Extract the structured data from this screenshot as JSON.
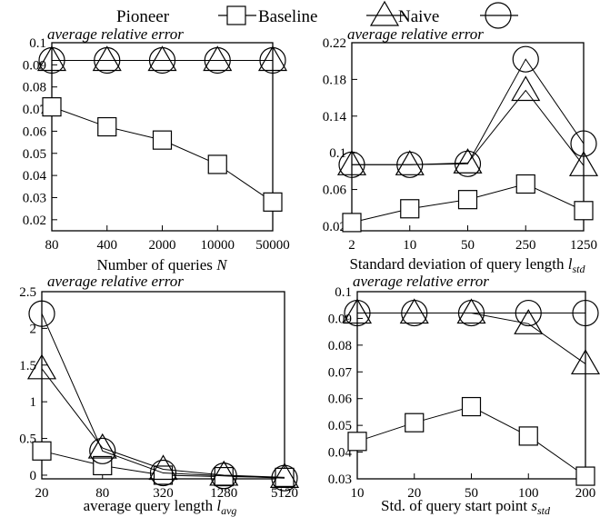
{
  "legend": [
    {
      "label": "Pioneer",
      "marker": "square"
    },
    {
      "label": "Baseline",
      "marker": "triangle"
    },
    {
      "label": "Naive",
      "marker": "circle"
    }
  ],
  "chart_data": [
    {
      "type": "line",
      "ylabel": "average relative error",
      "xlabel": "Number of queries N",
      "xlabel_parts": [
        "Number of queries ",
        "N",
        ""
      ],
      "categories": [
        "80",
        "400",
        "2000",
        "10000",
        "50000"
      ],
      "yticks": [
        "0.02",
        "0.03",
        "0.04",
        "0.05",
        "0.06",
        "0.07",
        "0.08",
        "0.09",
        "0.1"
      ],
      "ylim": [
        0.015,
        0.1
      ],
      "series": [
        {
          "name": "Pioneer",
          "values": [
            0.071,
            0.062,
            0.056,
            0.045,
            0.028
          ]
        },
        {
          "name": "Baseline",
          "values": [
            0.092,
            0.092,
            0.092,
            0.092,
            0.092
          ]
        },
        {
          "name": "Naive",
          "values": [
            0.092,
            0.092,
            0.092,
            0.092,
            0.092
          ]
        }
      ]
    },
    {
      "type": "line",
      "ylabel": "average relative error",
      "xlabel": "Standard deviation of query length l_std",
      "xlabel_parts": [
        "Standard deviation of query length ",
        "l",
        "std"
      ],
      "categories": [
        "2",
        "10",
        "50",
        "250",
        "1250"
      ],
      "yticks": [
        "0.02",
        "0.06",
        "0.1",
        "0.14",
        "0.18",
        "0.22"
      ],
      "ylim": [
        0.015,
        0.22
      ],
      "series": [
        {
          "name": "Pioneer",
          "values": [
            0.024,
            0.039,
            0.049,
            0.066,
            0.037
          ]
        },
        {
          "name": "Baseline",
          "values": [
            0.087,
            0.087,
            0.089,
            0.168,
            0.086
          ]
        },
        {
          "name": "Naive",
          "values": [
            0.087,
            0.087,
            0.088,
            0.202,
            0.11
          ]
        }
      ]
    },
    {
      "type": "line",
      "ylabel": "average relative error",
      "xlabel": "average query length l_avg",
      "xlabel_parts": [
        "average query length ",
        "l",
        "avg"
      ],
      "categories": [
        "20",
        "80",
        "320",
        "1280",
        "5120"
      ],
      "yticks": [
        "0",
        "0.5",
        "1",
        "1.5",
        "2",
        "2.5"
      ],
      "ylim": [
        -0.05,
        2.5
      ],
      "series": [
        {
          "name": "Pioneer",
          "values": [
            0.33,
            0.13,
            0.0,
            -0.02,
            -0.03
          ]
        },
        {
          "name": "Baseline",
          "values": [
            1.45,
            0.37,
            0.08,
            0.0,
            -0.03
          ]
        },
        {
          "name": "Naive",
          "values": [
            2.2,
            0.33,
            0.03,
            -0.01,
            -0.04
          ]
        }
      ]
    },
    {
      "type": "line",
      "ylabel": "average relative error",
      "xlabel": "Std. of query start point s_std",
      "xlabel_parts": [
        "Std. of query start point ",
        "s",
        "std"
      ],
      "categories": [
        "10",
        "20",
        "50",
        "100",
        "200"
      ],
      "yticks": [
        "0.03",
        "0.04",
        "0.05",
        "0.06",
        "0.07",
        "0.08",
        "0.09",
        "0.1"
      ],
      "ylim": [
        0.03,
        0.1
      ],
      "series": [
        {
          "name": "Pioneer",
          "values": [
            0.044,
            0.051,
            0.057,
            0.046,
            0.031
          ]
        },
        {
          "name": "Baseline",
          "values": [
            0.092,
            0.092,
            0.092,
            0.088,
            0.073
          ]
        },
        {
          "name": "Naive",
          "values": [
            0.092,
            0.092,
            0.092,
            0.092,
            0.092
          ]
        }
      ]
    }
  ]
}
